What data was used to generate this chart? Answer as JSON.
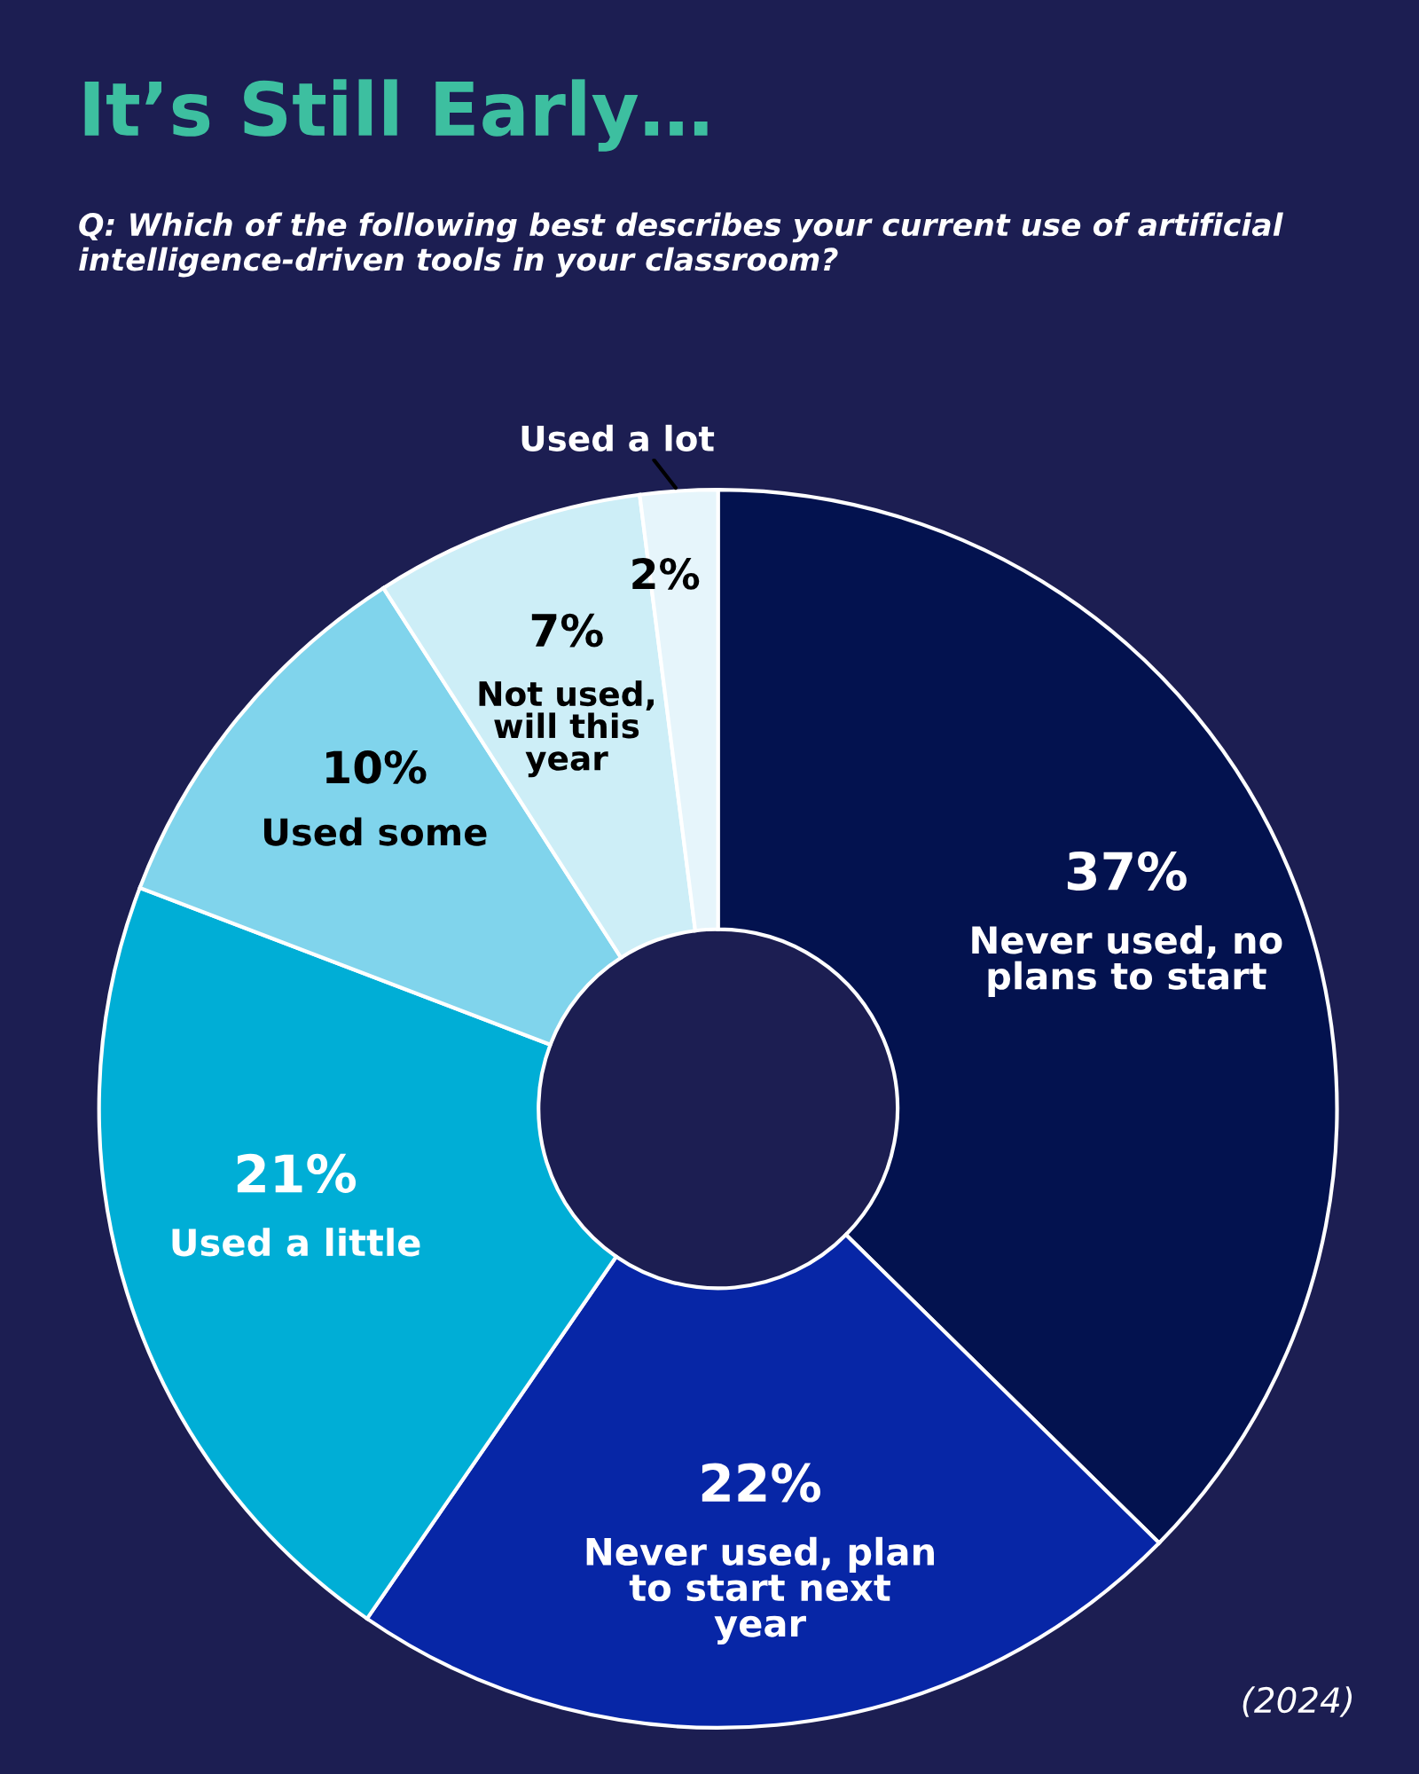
{
  "chart_data": {
    "type": "donut",
    "title": "It’s Still Early…",
    "subtitle": "Q: Which of the following best describes your current use of artificial intelligence-driven tools in your classroom?",
    "categories": [
      "Never used, no plans to start",
      "Never used, plan to start next year",
      "Used a little",
      "Used some",
      "Not used, will this year",
      "Used a lot"
    ],
    "values": [
      37,
      22,
      21,
      10,
      7,
      2
    ],
    "value_labels": [
      "37%",
      "22%",
      "21%",
      "10%",
      "7%",
      "2%"
    ],
    "colors": [
      "#03124f",
      "#0726a6",
      "#00aed6",
      "#80d4ec",
      "#cdeef7",
      "#e6f5fb"
    ],
    "annotations": [
      "(2024)"
    ]
  }
}
